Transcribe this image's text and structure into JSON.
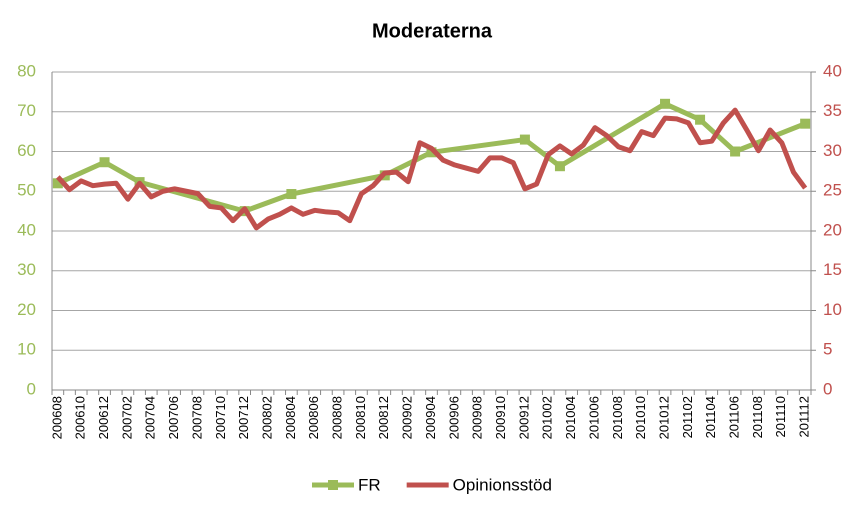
{
  "chart_data": {
    "type": "line",
    "title": "Moderaterna",
    "categories": [
      "200608",
      null,
      "200610",
      null,
      "200612",
      null,
      "200702",
      null,
      "200704",
      null,
      "200706",
      null,
      "200708",
      null,
      "200710",
      null,
      "200712",
      null,
      "200802",
      null,
      "200804",
      null,
      "200806",
      null,
      "200808",
      null,
      "200810",
      null,
      "200812",
      null,
      "200902",
      null,
      "200904",
      null,
      "200906",
      null,
      "200908",
      null,
      "200910",
      null,
      "200912",
      null,
      "201002",
      null,
      "201004",
      null,
      "201006",
      null,
      "201008",
      null,
      "201010",
      null,
      "201012",
      null,
      "201102",
      null,
      "201104",
      null,
      "201106",
      null,
      "201108",
      null,
      "201110",
      null,
      "201112"
    ],
    "series": [
      {
        "name": "FR",
        "color": "#9bbb59",
        "axis": "y",
        "marker": "square",
        "connect_gaps": true,
        "values": [
          52,
          null,
          null,
          null,
          57.3,
          null,
          null,
          52.3,
          null,
          null,
          null,
          null,
          null,
          null,
          null,
          null,
          45,
          null,
          null,
          null,
          49.3,
          null,
          null,
          null,
          null,
          null,
          null,
          null,
          54,
          null,
          null,
          null,
          59.8,
          null,
          null,
          null,
          null,
          null,
          null,
          null,
          63,
          null,
          null,
          56.3,
          null,
          null,
          null,
          null,
          null,
          null,
          null,
          null,
          72,
          null,
          null,
          68,
          null,
          null,
          60,
          null,
          null,
          null,
          null,
          null,
          67
        ]
      },
      {
        "name": "Opinionsstöd",
        "color": "#c0504d",
        "axis": "y2",
        "values": [
          26.8,
          25.2,
          26.3,
          25.7,
          25.9,
          26.0,
          24.0,
          26.0,
          24.3,
          25.0,
          25.3,
          25.0,
          24.7,
          23.1,
          22.9,
          21.3,
          22.8,
          20.4,
          21.5,
          22.1,
          22.9,
          22.1,
          22.6,
          22.4,
          22.3,
          21.3,
          24.7,
          25.7,
          27.3,
          27.4,
          26.2,
          31.1,
          30.4,
          28.9,
          28.3,
          27.9,
          27.5,
          29.2,
          29.2,
          28.6,
          25.3,
          25.9,
          29.6,
          30.7,
          29.7,
          30.8,
          33.0,
          32.0,
          30.6,
          30.1,
          32.5,
          32.0,
          34.2,
          34.1,
          33.6,
          31.1,
          31.3,
          33.6,
          35.2,
          32.7,
          30.1,
          32.7,
          31.1,
          27.4,
          25.4
        ]
      }
    ],
    "ylim": [
      0,
      80
    ],
    "yticks": [
      0,
      10,
      20,
      30,
      40,
      50,
      60,
      70,
      80
    ],
    "y2lim": [
      0,
      40
    ],
    "y2ticks": [
      0,
      5,
      10,
      15,
      20,
      25,
      30,
      35,
      40
    ],
    "grid": true,
    "legend": "bottom"
  }
}
